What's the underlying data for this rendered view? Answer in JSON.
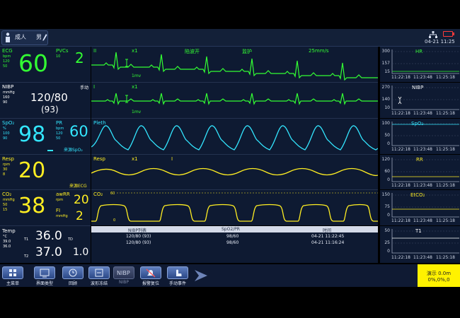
{
  "patient": {
    "category": "成人",
    "sex": "男"
  },
  "clock": "04-21 11:25",
  "params": {
    "ecg": {
      "label": "ECG",
      "unit": "bpm",
      "hi": "120",
      "lo": "50",
      "value": "60"
    },
    "pvcs": {
      "label": "PVCs",
      "hi": "10",
      "value": "2"
    },
    "nibp": {
      "label": "NIBP",
      "unit": "mmHg",
      "hi": "160",
      "lo": "90",
      "mode": "手动",
      "value": "120/80",
      "mean": "(93)"
    },
    "spo2": {
      "label": "SpO₂",
      "unit": "%",
      "hi": "100",
      "lo": "90",
      "value": "98"
    },
    "pr": {
      "label": "PR",
      "unit": "bpm",
      "hi": "120",
      "lo": "50",
      "value": "60",
      "source": "来源SpO₂"
    },
    "resp": {
      "label": "Resp",
      "unit": "rpm",
      "hi": "30",
      "lo": "8",
      "value": "20",
      "source": "来源ECG"
    },
    "co2": {
      "label": "CO₂",
      "unit": "mmHg",
      "hi": "50",
      "lo": "15",
      "value": "38"
    },
    "awrr": {
      "label": "awRR",
      "unit": "rpm",
      "value": "20"
    },
    "fi": {
      "label": "FI",
      "unit": "mmHg",
      "value": "2"
    },
    "temp": {
      "label": "Temp",
      "unit": "°C",
      "hi": "39.0",
      "lo": "36.0",
      "t1_label": "T1",
      "t1": "36.0",
      "t2_label": "T2",
      "t2": "37.0",
      "td_label": "TD",
      "td": "1.0"
    }
  },
  "waves": {
    "ecg2": {
      "lead": "II",
      "gain": "x1",
      "filter": "陷波开",
      "mode": "监护",
      "speed": "25mm/s",
      "scale": "1mv"
    },
    "ecg1": {
      "lead": "I",
      "gain": "x1",
      "scale": "1mv"
    },
    "pleth": {
      "label": "Pleth"
    },
    "resp": {
      "label": "Resp",
      "gain": "x1",
      "marker": "I"
    },
    "co2": {
      "label": "CO₂",
      "top": "60",
      "bottom": "0"
    }
  },
  "trends": [
    {
      "name": "HR",
      "ticks": [
        "300",
        "157",
        "15"
      ],
      "times": [
        "11:22:18",
        "11:23:48",
        "11:25:18"
      ],
      "color": "#33ff33"
    },
    {
      "name": "NIBP",
      "ticks": [
        "270",
        "140",
        "10"
      ],
      "times": [
        "11:22:18",
        "11:23:48",
        "11:25:18"
      ],
      "color": "#ffffff"
    },
    {
      "name": "SpO₂",
      "ticks": [
        "100",
        "50",
        "0"
      ],
      "times": [
        "11:22:18",
        "11:23:48",
        "11:25:18"
      ],
      "color": "#33e6ff"
    },
    {
      "name": "RR",
      "ticks": [
        "120",
        "60",
        "0"
      ],
      "times": [
        "11:22:18",
        "11:23:48",
        "11:25:18"
      ],
      "color": "#ffee22"
    },
    {
      "name": "EtCO₂",
      "ticks": [
        "150",
        "75",
        "0"
      ],
      "times": [
        "11:22:18",
        "11:23:48",
        "11:25:18"
      ],
      "color": "#ffee22"
    },
    {
      "name": "T1",
      "ticks": [
        "50",
        "25",
        "0"
      ],
      "times": [
        "11:22:18",
        "11:23:48",
        "11:25:18"
      ],
      "color": "#ffffff"
    }
  ],
  "nibp_table": {
    "headers": [
      "NIBP列表",
      "SpO2/PR",
      "时间"
    ],
    "rows": [
      [
        "120/80 (93)",
        "98/60",
        "04-21 11:22:45"
      ],
      [
        "120/80 (93)",
        "98/60",
        "04-21 11:16:24"
      ]
    ]
  },
  "menu": [
    "主菜单",
    "界面类型",
    "回顾",
    "波形冻结",
    "NIBP",
    "报警复位",
    "手动事件"
  ],
  "demo": {
    "line1": "演示 0.0m",
    "line2": "0%,0%,0"
  }
}
